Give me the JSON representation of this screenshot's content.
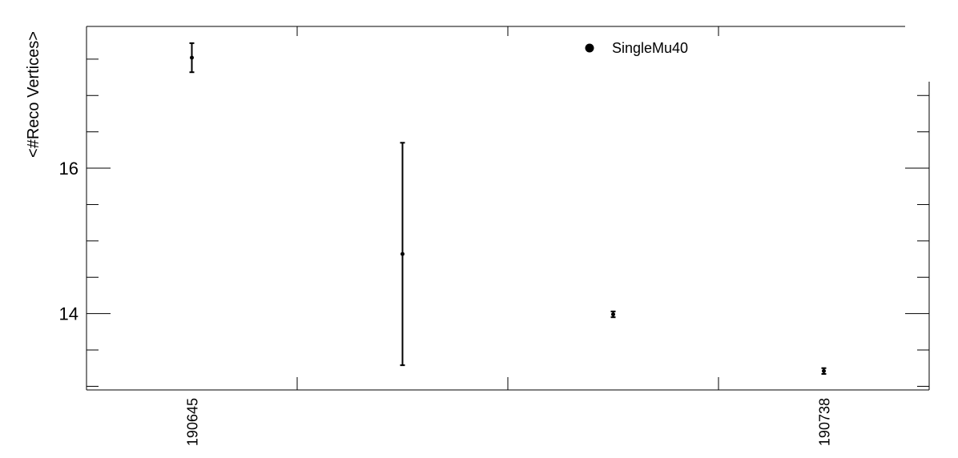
{
  "chart_data": {
    "type": "scatter",
    "ylabel": "<#Reco Vertices>",
    "categories": [
      "190645",
      "",
      "",
      "190738"
    ],
    "x_tick_labels_shown": [
      "190645",
      "190738"
    ],
    "ylim": [
      12.95,
      17.95
    ],
    "y_major_ticks": [
      14,
      16
    ],
    "y_minor_step": 0.5,
    "grid": false,
    "legend_position": "top-right",
    "series": [
      {
        "name": "SingleMu40",
        "marker": "filled-circle",
        "color": "#000000",
        "values": [
          17.52,
          14.82,
          13.99,
          13.21
        ],
        "errors": [
          0.2,
          1.53,
          0.04,
          0.04
        ]
      }
    ]
  }
}
